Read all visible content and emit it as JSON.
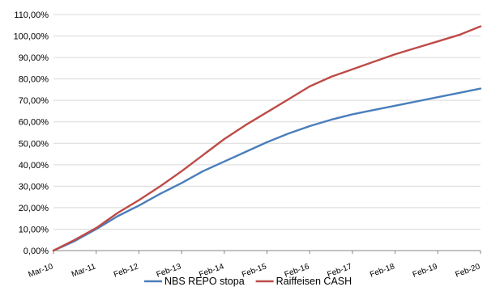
{
  "chart_data": {
    "type": "line",
    "title": "",
    "xlabel": "",
    "ylabel": "",
    "ylim": [
      0,
      110
    ],
    "y_ticks": [
      "0,00%",
      "10,00%",
      "20,00%",
      "30,00%",
      "40,00%",
      "50,00%",
      "60,00%",
      "70,00%",
      "80,00%",
      "90,00%",
      "100,00%",
      "110,00%"
    ],
    "x_tick_labels": [
      "Mar-10",
      "Mar-11",
      "Feb-12",
      "Feb-13",
      "Feb-14",
      "Feb-15",
      "Feb-16",
      "Feb-17",
      "Feb-18",
      "Feb-19",
      "Feb-20"
    ],
    "x": [
      "Mar-10",
      "Sep-10",
      "Mar-11",
      "Sep-11",
      "Feb-12",
      "Aug-12",
      "Feb-13",
      "Aug-13",
      "Feb-14",
      "Aug-14",
      "Feb-15",
      "Aug-15",
      "Feb-16",
      "Aug-16",
      "Feb-17",
      "Aug-17",
      "Feb-18",
      "Aug-18",
      "Feb-19",
      "Aug-19",
      "Feb-20"
    ],
    "grid": true,
    "legend_position": "bottom",
    "series": [
      {
        "name": "NBS REPO stopa",
        "color": "#4a7ebb",
        "values": [
          0.0,
          4.5,
          10.0,
          16.0,
          21.0,
          26.5,
          31.5,
          37.0,
          41.5,
          46.0,
          50.5,
          54.5,
          58.0,
          61.0,
          63.5,
          65.5,
          67.5,
          69.5,
          71.5,
          73.5,
          75.5
        ]
      },
      {
        "name": "Raiffeisen CASH",
        "color": "#be4b48",
        "values": [
          0.0,
          5.0,
          10.5,
          17.5,
          23.5,
          30.0,
          37.0,
          44.5,
          52.0,
          58.5,
          64.5,
          70.5,
          76.5,
          81.0,
          84.5,
          88.0,
          91.5,
          94.5,
          97.5,
          100.5,
          104.5
        ]
      }
    ]
  }
}
